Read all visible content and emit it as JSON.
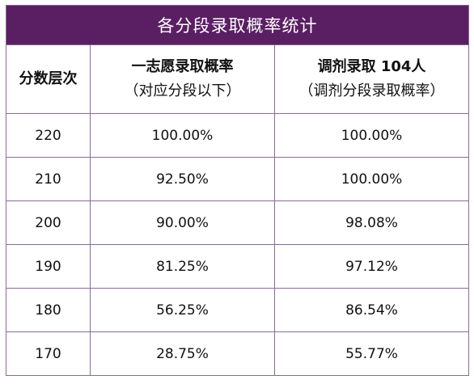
{
  "table": {
    "title": "各分段录取概率统计",
    "headers": {
      "col1": "分数层次",
      "col2_line1": "一志愿录取概率",
      "col2_line2": "（对应分段以下）",
      "col3_line1_prefix": "调剂录取",
      "col3_line1_count": "104人",
      "col3_line2": "（调剂分段录取概率）"
    },
    "rows": [
      {
        "score": "220",
        "first_choice": "100.00%",
        "adjusted": "100.00%"
      },
      {
        "score": "210",
        "first_choice": "92.50%",
        "adjusted": "100.00%"
      },
      {
        "score": "200",
        "first_choice": "90.00%",
        "adjusted": "98.08%"
      },
      {
        "score": "190",
        "first_choice": "81.25%",
        "adjusted": "97.12%"
      },
      {
        "score": "180",
        "first_choice": "56.25%",
        "adjusted": "86.54%"
      },
      {
        "score": "170",
        "first_choice": "28.75%",
        "adjusted": "55.77%"
      }
    ]
  },
  "colors": {
    "title_bg": "#5a1f63",
    "title_text": "#ffffff",
    "border": "#8a6a98"
  }
}
